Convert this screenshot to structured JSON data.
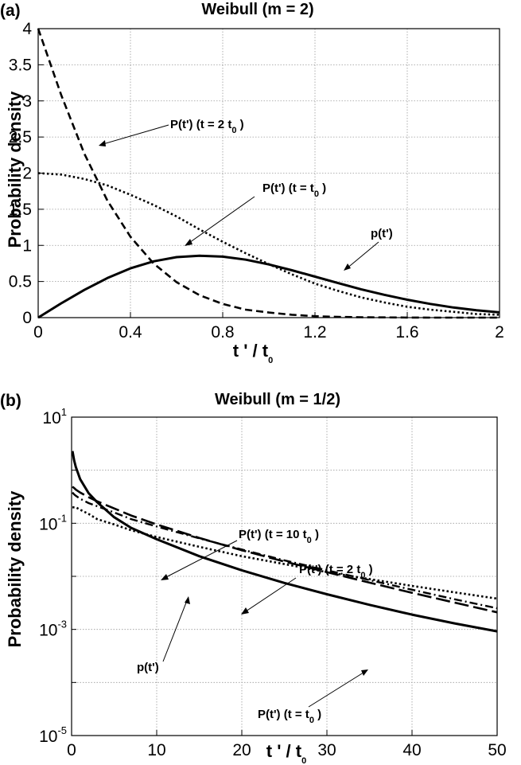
{
  "chart_data": [
    {
      "panel_label": "(a)",
      "type": "line",
      "title": "Weibull    (m = 2)",
      "ylabel": "Probability  density",
      "xlabel": {
        "main": "t ' / t",
        "sub": "0"
      },
      "xlim": [
        0,
        2
      ],
      "ylim": [
        0,
        4
      ],
      "xticks": [
        "0",
        "0.4",
        "0.8",
        "1.2",
        "1.6",
        "2"
      ],
      "xtick_values": [
        0,
        0.4,
        0.8,
        1.2,
        1.6,
        2
      ],
      "yticks": [
        "0",
        "0.5",
        "1",
        "1.5",
        "2",
        "2.5",
        "3",
        "3.5",
        "4"
      ],
      "ytick_values": [
        0,
        0.5,
        1,
        1.5,
        2,
        2.5,
        3,
        3.5,
        4
      ],
      "grid": true,
      "x": [
        0,
        0.1,
        0.2,
        0.3,
        0.4,
        0.5,
        0.6,
        0.7,
        0.8,
        0.9,
        1.0,
        1.1,
        1.2,
        1.3,
        1.4,
        1.5,
        1.6,
        1.7,
        1.8,
        1.9,
        2.0
      ],
      "series": [
        {
          "style": "dashed",
          "values": [
            4.0,
            3.08,
            2.27,
            1.62,
            1.12,
            0.75,
            0.49,
            0.31,
            0.19,
            0.11,
            0.07,
            0.04,
            0.02,
            0.01,
            0.005,
            0.003,
            0.001,
            0.0,
            0.0,
            0.0,
            0.0
          ]
        },
        {
          "style": "dotted",
          "values": [
            2.0,
            1.98,
            1.92,
            1.83,
            1.7,
            1.56,
            1.4,
            1.22,
            1.05,
            0.89,
            0.74,
            0.6,
            0.47,
            0.37,
            0.28,
            0.21,
            0.15,
            0.11,
            0.08,
            0.05,
            0.04
          ]
        },
        {
          "style": "solid",
          "values": [
            0.0,
            0.198,
            0.384,
            0.548,
            0.682,
            0.779,
            0.837,
            0.856,
            0.844,
            0.802,
            0.736,
            0.656,
            0.568,
            0.478,
            0.392,
            0.316,
            0.248,
            0.19,
            0.14,
            0.103,
            0.073
          ]
        }
      ],
      "annotations": [
        {
          "main": "P(t')   (t  =  2  t",
          "sub": "0",
          "tail": " )"
        },
        {
          "main": "P(t')       (t  =  t",
          "sub": "0",
          "tail": " )"
        },
        {
          "main": "p(t')",
          "sub": "",
          "tail": ""
        }
      ]
    },
    {
      "panel_label": "(b)",
      "type": "line",
      "title": "Weibull     (m  =  1/2)",
      "ylabel": "Probability  density",
      "xlabel": {
        "main": "t ' / t",
        "sub": "0"
      },
      "xlim": [
        0,
        50
      ],
      "ylim": [
        1e-05,
        10
      ],
      "yscale": "log",
      "xticks": [
        "0",
        "10",
        "20",
        "30",
        "40",
        "50"
      ],
      "xtick_values": [
        0,
        10,
        20,
        30,
        40,
        50
      ],
      "yticks": [
        {
          "base": "10",
          "exp": "1",
          "value": 10
        },
        {
          "base": "10",
          "exp": "-1",
          "value": 0.1
        },
        {
          "base": "10",
          "exp": "-3",
          "value": 0.001
        },
        {
          "base": "10",
          "exp": "-5",
          "value": 1e-05
        }
      ],
      "grid": true,
      "x": [
        0.1,
        0.3,
        0.5,
        1,
        2,
        3,
        5,
        7,
        10,
        15,
        20,
        25,
        30,
        35,
        40,
        45,
        50
      ],
      "series": [
        {
          "style": "solid",
          "values": [
            2.29,
            1.53,
            1.15,
            0.68,
            0.37,
            0.25,
            0.13,
            0.082,
            0.05,
            0.024,
            0.013,
            0.0075,
            0.0046,
            0.0029,
            0.0019,
            0.0013,
            0.00092
          ]
        },
        {
          "style": "dotted",
          "values": [
            0.2,
            0.2,
            0.2,
            0.18,
            0.15,
            0.12,
            0.095,
            0.074,
            0.055,
            0.036,
            0.024,
            0.017,
            0.012,
            0.0089,
            0.0066,
            0.005,
            0.0038
          ]
        },
        {
          "style": "dash-dot",
          "values": [
            0.38,
            0.35,
            0.33,
            0.29,
            0.24,
            0.21,
            0.16,
            0.12,
            0.087,
            0.052,
            0.032,
            0.02,
            0.013,
            0.0085,
            0.0056,
            0.0037,
            0.0025
          ]
        },
        {
          "style": "long-dash",
          "values": [
            0.49,
            0.46,
            0.43,
            0.38,
            0.31,
            0.26,
            0.19,
            0.14,
            0.095,
            0.053,
            0.031,
            0.019,
            0.012,
            0.0076,
            0.0049,
            0.0032,
            0.0021
          ]
        }
      ],
      "annotations": [
        {
          "main": "P(t')   (t  =  10  t",
          "sub": "0",
          "tail": " )"
        },
        {
          "main": "P(t')   (t  =  2  t",
          "sub": "0",
          "tail": " )"
        },
        {
          "main": "p(t')",
          "sub": "",
          "tail": ""
        },
        {
          "main": "P(t')    (t  =  t",
          "sub": "0",
          "tail": " )"
        }
      ]
    }
  ]
}
